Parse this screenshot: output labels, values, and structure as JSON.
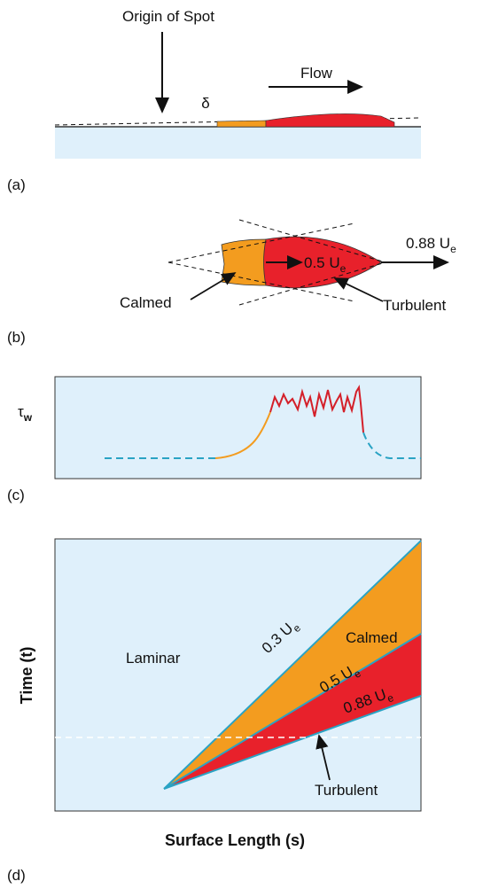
{
  "panel_a": {
    "origin_label": "Origin of Spot",
    "flow_label": "Flow",
    "delta_label": "δ",
    "panel_label": "(a)"
  },
  "panel_b": {
    "calmed_label": "Calmed",
    "turbulent_label": "Turbulent",
    "inner_speed": {
      "main": "0.5 U",
      "sub": "e"
    },
    "outer_speed": {
      "main": "0.88 U",
      "sub": "e"
    },
    "panel_label": "(b)"
  },
  "panel_c": {
    "y_label": {
      "main": "τ",
      "sub": "w"
    },
    "panel_label": "(c)"
  },
  "panel_d": {
    "y_label": "Time (t)",
    "x_label": "Surface Length (s)",
    "laminar_label": "Laminar",
    "calmed_label": "Calmed",
    "turbulent_label": "Turbulent",
    "line_low": {
      "main": "0.3 U",
      "sub": "e"
    },
    "line_mid": {
      "main": "0.5 U",
      "sub": "e"
    },
    "line_high": {
      "main": "0.88 U",
      "sub": "e"
    },
    "panel_label": "(d)"
  }
}
